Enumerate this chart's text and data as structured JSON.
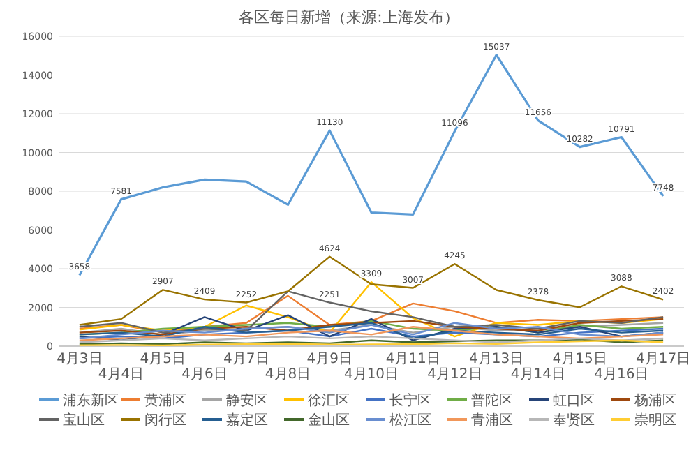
{
  "chart_data": {
    "type": "line",
    "title": "各区每日新增（来源:上海发布）",
    "categories": [
      "4月3日",
      "4月4日",
      "4月5日",
      "4月6日",
      "4月7日",
      "4月8日",
      "4月9日",
      "4月10日",
      "4月11日",
      "4月12日",
      "4月13日",
      "4月14日",
      "4月15日",
      "4月16日",
      "4月17日"
    ],
    "ylim": [
      0,
      16000
    ],
    "yticks": [
      0,
      2000,
      4000,
      6000,
      8000,
      10000,
      12000,
      14000,
      16000
    ],
    "grid": "y",
    "legend": "bottom",
    "series": [
      {
        "name": "浦东新区",
        "color": "#5b9bd5",
        "values": [
          3658,
          7581,
          8200,
          8600,
          8500,
          7300,
          11130,
          6900,
          6800,
          11096,
          15037,
          11656,
          10282,
          10791,
          7748
        ],
        "value_labels": [
          "3658",
          "7581",
          null,
          null,
          null,
          null,
          "11130",
          null,
          null,
          "11096",
          "15037",
          "11656",
          "10282",
          "10791",
          "7748"
        ]
      },
      {
        "name": "黄浦区",
        "color": "#ed7d31",
        "values": [
          900,
          1100,
          700,
          1000,
          1200,
          2600,
          1100,
          1300,
          2200,
          1804,
          1200,
          1362,
          1300,
          1400,
          1500
        ]
      },
      {
        "name": "静安区",
        "color": "#a5a5a5",
        "values": [
          700,
          900,
          600,
          800,
          900,
          1000,
          800,
          1100,
          700,
          1000,
          800,
          900,
          1000,
          1100,
          1200
        ]
      },
      {
        "name": "徐汇区",
        "color": "#ffc000",
        "values": [
          850,
          1100,
          800,
          1000,
          2100,
          1500,
          700,
          3309,
          1450,
          500,
          1200,
          1100,
          1300,
          1200,
          1400
        ],
        "value_labels": [
          null,
          null,
          null,
          null,
          null,
          null,
          null,
          "3309",
          null,
          null,
          null,
          null,
          null,
          null,
          null
        ]
      },
      {
        "name": "长宁区",
        "color": "#4472c4",
        "values": [
          400,
          500,
          400,
          600,
          700,
          800,
          500,
          900,
          500,
          700,
          600,
          500,
          700,
          800,
          900
        ]
      },
      {
        "name": "普陀区",
        "color": "#70ad47",
        "values": [
          600,
          700,
          900,
          1000,
          1100,
          1200,
          1000,
          1300,
          900,
          800,
          1000,
          700,
          1100,
          900,
          1000
        ]
      },
      {
        "name": "虹口区",
        "color": "#264478",
        "values": [
          500,
          300,
          600,
          1500,
          800,
          1600,
          500,
          1400,
          300,
          900,
          1000,
          700,
          1000,
          500,
          700
        ]
      },
      {
        "name": "杨浦区",
        "color": "#9e480e",
        "values": [
          700,
          800,
          600,
          900,
          1000,
          800,
          1100,
          1200,
          1300,
          1000,
          900,
          800,
          1200,
          1300,
          1400
        ]
      },
      {
        "name": "宝山区",
        "color": "#636363",
        "values": [
          1000,
          1200,
          700,
          900,
          800,
          2830,
          2251,
          1800,
          1500,
          1000,
          1100,
          900,
          1300,
          1200,
          1500
        ],
        "value_labels": [
          null,
          null,
          null,
          null,
          null,
          null,
          "2251",
          null,
          null,
          null,
          null,
          null,
          null,
          null,
          null
        ]
      },
      {
        "name": "闵行区",
        "color": "#997300",
        "values": [
          1100,
          1400,
          2907,
          2409,
          2252,
          2830,
          4624,
          3200,
          3007,
          4245,
          2900,
          2378,
          2007,
          3088,
          2402
        ],
        "value_labels": [
          null,
          null,
          "2907",
          "2409",
          "2252",
          null,
          "4624",
          null,
          "3007",
          "4245",
          null,
          "2378",
          null,
          "3088",
          "2402"
        ]
      },
      {
        "name": "嘉定区",
        "color": "#255e91",
        "values": [
          600,
          700,
          500,
          1000,
          700,
          800,
          1000,
          1200,
          400,
          800,
          700,
          600,
          900,
          700,
          800
        ]
      },
      {
        "name": "金山区",
        "color": "#43682b",
        "values": [
          100,
          150,
          100,
          200,
          150,
          200,
          150,
          300,
          200,
          250,
          300,
          300,
          350,
          200,
          300
        ]
      },
      {
        "name": "松江区",
        "color": "#698ed0",
        "values": [
          400,
          600,
          800,
          700,
          900,
          1000,
          700,
          1100,
          600,
          1200,
          900,
          1000,
          600,
          500,
          700
        ]
      },
      {
        "name": "青浦区",
        "color": "#f1975a",
        "values": [
          300,
          400,
          500,
          600,
          500,
          700,
          800,
          600,
          1000,
          800,
          600,
          500,
          400,
          500,
          600
        ]
      },
      {
        "name": "奉贤区",
        "color": "#b7b7b7",
        "values": [
          200,
          300,
          400,
          300,
          400,
          500,
          400,
          500,
          400,
          300,
          200,
          300,
          400,
          300,
          400
        ]
      },
      {
        "name": "崇明区",
        "color": "#ffcd33",
        "values": [
          50,
          60,
          40,
          80,
          100,
          120,
          80,
          90,
          100,
          150,
          120,
          200,
          250,
          300,
          200
        ]
      }
    ]
  }
}
